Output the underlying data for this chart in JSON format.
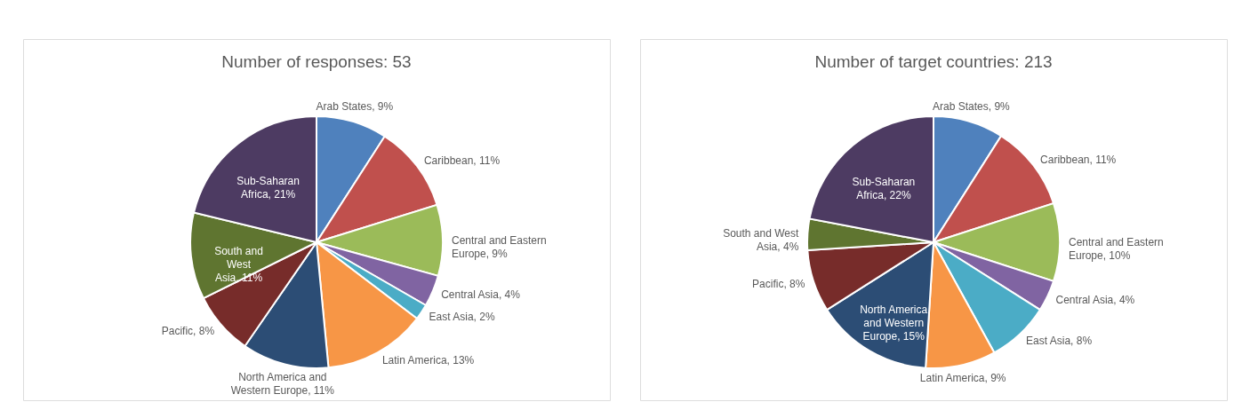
{
  "chart_data": [
    {
      "type": "pie",
      "title": "Number of responses: 53",
      "categories": [
        "Arab States",
        "Caribbean",
        "Central and Eastern Europe",
        "Central Asia",
        "East Asia",
        "Latin America",
        "North America and Western Europe",
        "Pacific",
        "South and West Asia",
        "Sub-Saharan Africa"
      ],
      "values": [
        9,
        11,
        9,
        4,
        2,
        13,
        11,
        8,
        11,
        21
      ],
      "value_labels": [
        "9%",
        "11%",
        "9%",
        "4%",
        "2%",
        "13%",
        "11%",
        "8%",
        "11%",
        "21%"
      ],
      "colors": [
        "#4f81bd",
        "#c0504d",
        "#9bbb59",
        "#8064a2",
        "#4bacc6",
        "#f79646",
        "#2c4d75",
        "#772c2a",
        "#5f7530",
        "#4d3b62"
      ]
    },
    {
      "type": "pie",
      "title": "Number of target countries: 213",
      "categories": [
        "Arab States",
        "Caribbean",
        "Central and Eastern Europe",
        "Central Asia",
        "East Asia",
        "Latin America",
        "North America and Western Europe",
        "Pacific",
        "South and West Asia",
        "Sub-Saharan Africa"
      ],
      "values": [
        9,
        11,
        10,
        4,
        8,
        9,
        15,
        8,
        4,
        22
      ],
      "value_labels": [
        "9%",
        "11%",
        "10%",
        "4%",
        "8%",
        "9%",
        "15%",
        "8%",
        "4%",
        "22%"
      ],
      "colors": [
        "#4f81bd",
        "#c0504d",
        "#9bbb59",
        "#8064a2",
        "#4bacc6",
        "#f79646",
        "#2c4d75",
        "#772c2a",
        "#5f7530",
        "#4d3b62"
      ]
    }
  ]
}
